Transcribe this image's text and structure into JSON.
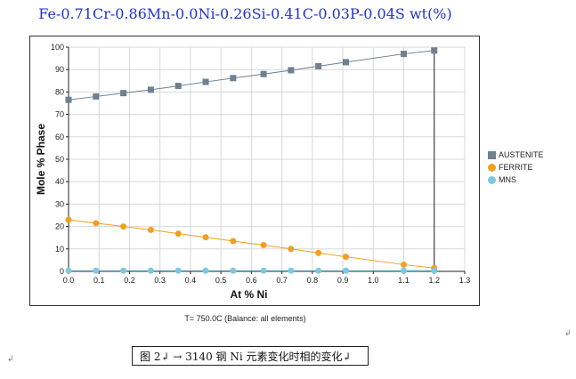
{
  "chart_data": {
    "type": "line",
    "title": "Fe-0.71Cr-0.86Mn-0.0Ni-0.26Si-0.41C-0.03P-0.04S wt(%)",
    "xlabel": "At % Ni",
    "ylabel": "Mole % Phase",
    "xlim": [
      0,
      1.3
    ],
    "ylim": [
      0,
      100
    ],
    "xticks": [
      "0.0",
      "0.1",
      "0.2",
      "0.3",
      "0.4",
      "0.5",
      "0.6",
      "0.7",
      "0.8",
      "0.9",
      "1.0",
      "1.1",
      "1.2",
      "1.3"
    ],
    "yticks": [
      "0",
      "10",
      "20",
      "30",
      "40",
      "50",
      "60",
      "70",
      "80",
      "90",
      "100"
    ],
    "grid": true,
    "legend_position": "right",
    "series": [
      {
        "name": "AUSTENITE",
        "color": "#6f8090",
        "marker": "square",
        "x": [
          0.0,
          0.09,
          0.18,
          0.27,
          0.36,
          0.45,
          0.54,
          0.64,
          0.73,
          0.82,
          0.91,
          1.1,
          1.2
        ],
        "y": [
          76.5,
          78.0,
          79.5,
          81.0,
          82.7,
          84.5,
          86.2,
          88.0,
          89.7,
          91.5,
          93.3,
          97.0,
          98.5
        ]
      },
      {
        "name": "FERRITE",
        "color": "#f0a020",
        "marker": "circle",
        "x": [
          0.0,
          0.09,
          0.18,
          0.27,
          0.36,
          0.45,
          0.54,
          0.64,
          0.73,
          0.82,
          0.91,
          1.1,
          1.2
        ],
        "y": [
          23.0,
          21.5,
          20.0,
          18.5,
          16.8,
          15.2,
          13.5,
          11.7,
          10.0,
          8.2,
          6.5,
          3.0,
          1.5
        ]
      },
      {
        "name": "MNS",
        "color": "#7ec8e0",
        "marker": "circle",
        "x": [
          0.0,
          0.09,
          0.18,
          0.27,
          0.36,
          0.45,
          0.54,
          0.64,
          0.73,
          0.82,
          0.91,
          1.1,
          1.2
        ],
        "y": [
          0.3,
          0.3,
          0.3,
          0.3,
          0.3,
          0.3,
          0.3,
          0.3,
          0.3,
          0.3,
          0.3,
          0.3,
          0.3
        ]
      }
    ],
    "vertical_line_x": 1.2,
    "footnote": "T= 750.0C (Balance: all elements)"
  },
  "caption": "图 2↲ → 3140 钢 Ni 元素变化时相的变化↲",
  "marks": {
    "return_right": "↲",
    "return_left": "↲"
  }
}
